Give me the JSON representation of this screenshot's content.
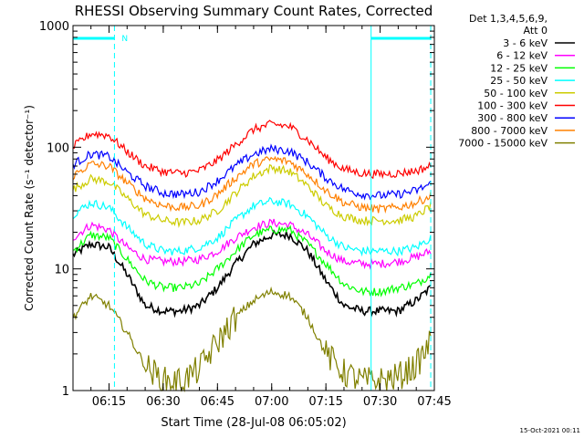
{
  "chart_data": {
    "type": "line",
    "title": "RHESSI Observing Summary Count Rates, Corrected",
    "xlabel": "Start Time (28-Jul-08 06:05:02)",
    "ylabel": "Corrected Count Rate (s⁻¹ detector⁻¹)",
    "y_scale": "log",
    "ylim": [
      1,
      1000
    ],
    "y_ticks": [
      {
        "value": 1,
        "label": "1"
      },
      {
        "value": 10,
        "label": "10"
      },
      {
        "value": 100,
        "label": "100"
      },
      {
        "value": 1000,
        "label": "1000"
      }
    ],
    "xlim": [
      "06:05:02",
      "07:45:00"
    ],
    "x_ticks": [
      {
        "value": "06:15",
        "label": "06:15"
      },
      {
        "value": "06:30",
        "label": "06:30"
      },
      {
        "value": "06:45",
        "label": "06:45"
      },
      {
        "value": "07:00",
        "label": "07:00"
      },
      {
        "value": "07:15",
        "label": "07:15"
      },
      {
        "value": "07:30",
        "label": "07:30"
      },
      {
        "value": "07:45",
        "label": "07:45"
      }
    ],
    "legend": {
      "placement": "right",
      "header": [
        "Det 1,3,4,5,6,9,",
        "Att 0"
      ]
    },
    "annotations": {
      "flag_label": "N",
      "flag_bars": [
        {
          "start": "06:05:02",
          "end": "06:16:30"
        },
        {
          "start": "07:27:30",
          "end": "07:44:00"
        }
      ],
      "solid_markers": [
        "06:05:02",
        "07:27:30"
      ],
      "dashed_markers": [
        "06:16:30",
        "07:44:00"
      ]
    },
    "footer_timestamp": "15-Oct-2021 00:11",
    "x_times": [
      "06:05",
      "06:10",
      "06:15",
      "06:20",
      "06:25",
      "06:30",
      "06:35",
      "06:40",
      "06:45",
      "06:50",
      "06:55",
      "07:00",
      "07:05",
      "07:10",
      "07:15",
      "07:20",
      "07:25",
      "07:30",
      "07:35",
      "07:40",
      "07:44"
    ],
    "series": [
      {
        "name": "3 - 6 keV",
        "color": "#000000",
        "values": [
          13,
          16,
          15,
          9,
          5,
          4.5,
          4.5,
          5,
          7,
          11,
          16,
          19,
          19,
          14,
          8,
          5,
          4.5,
          4.5,
          4.5,
          5.5,
          7
        ]
      },
      {
        "name": "6 - 12 keV",
        "color": "#ff00ff",
        "values": [
          18,
          23,
          21,
          15,
          12,
          11.5,
          11.5,
          12,
          14,
          18,
          22,
          24,
          23,
          19,
          14,
          11.5,
          11,
          11,
          11.5,
          12.5,
          14
        ]
      },
      {
        "name": "12 - 25 keV",
        "color": "#00ff00",
        "values": [
          14,
          19,
          18,
          12,
          8,
          7,
          7,
          7.5,
          10,
          14,
          19,
          21,
          21,
          16,
          11,
          7.5,
          6.5,
          6.5,
          7,
          7.5,
          9
        ]
      },
      {
        "name": "25 - 50 keV",
        "color": "#00ffff",
        "values": [
          28,
          35,
          32,
          22,
          16,
          14,
          14,
          15,
          18,
          25,
          33,
          36,
          34,
          27,
          19,
          15,
          14,
          14,
          14,
          15,
          18
        ]
      },
      {
        "name": "50 - 100 keV",
        "color": "#cccc00",
        "values": [
          45,
          55,
          52,
          38,
          28,
          25,
          24,
          25,
          30,
          42,
          58,
          68,
          63,
          48,
          33,
          27,
          25,
          25,
          25,
          27,
          33
        ]
      },
      {
        "name": "100 - 300 keV",
        "color": "#ff0000",
        "values": [
          100,
          130,
          125,
          92,
          70,
          63,
          61,
          64,
          78,
          105,
          140,
          155,
          148,
          115,
          82,
          66,
          61,
          60,
          61,
          64,
          70
        ]
      },
      {
        "name": "300 - 800 keV",
        "color": "#0000ff",
        "values": [
          72,
          88,
          84,
          62,
          48,
          42,
          41,
          43,
          53,
          70,
          88,
          97,
          93,
          75,
          56,
          45,
          41,
          40,
          41,
          44,
          50
        ]
      },
      {
        "name": "800 - 7000 keV",
        "color": "#ff8000",
        "values": [
          58,
          73,
          70,
          51,
          38,
          33,
          32,
          33,
          41,
          56,
          73,
          80,
          76,
          60,
          44,
          35,
          32,
          31,
          32,
          35,
          40
        ]
      },
      {
        "name": "7000 - 15000 keV",
        "color": "#808000",
        "values": [
          4,
          6,
          5,
          3,
          1.6,
          1.2,
          1.2,
          1.5,
          2.5,
          4,
          5.5,
          6.5,
          6,
          4,
          2,
          1.4,
          1.2,
          1.2,
          1.3,
          1.6,
          2.5
        ]
      }
    ]
  }
}
